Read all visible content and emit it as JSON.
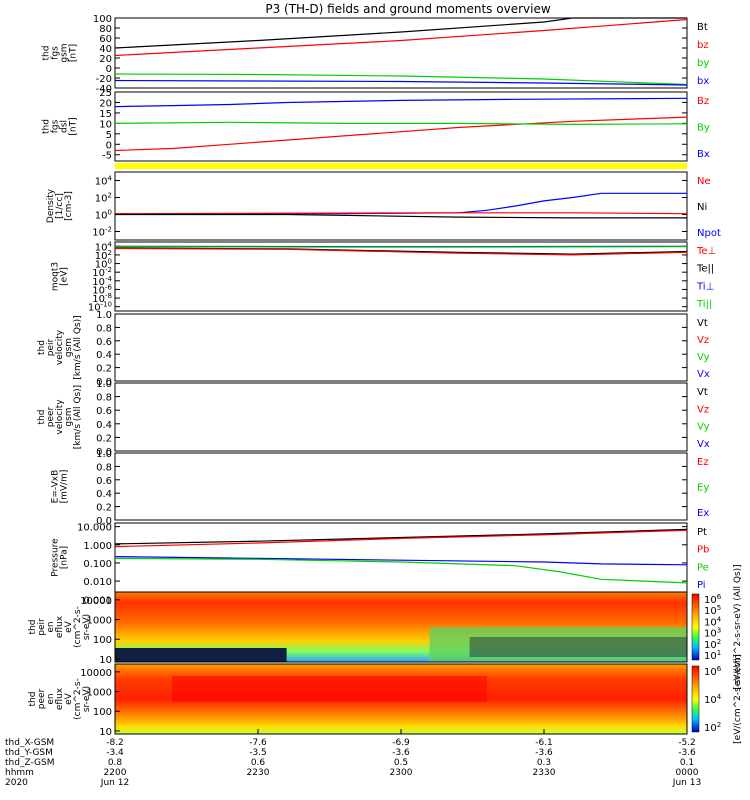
{
  "title": "P3 (TH-D) fields and ground moments overview",
  "colors": {
    "black": "#000000",
    "red": "#ff0000",
    "green": "#00d000",
    "blue": "#0000ff",
    "yellow": "#ffff00"
  },
  "chart_data": [
    {
      "id": "fgs",
      "type": "line",
      "ylabel_lines": [
        "thd",
        "fgs",
        "gsm",
        "[nT]"
      ],
      "ylim": [
        -40,
        100
      ],
      "yticks": [
        100,
        80,
        60,
        40,
        20,
        0,
        -20,
        -40
      ],
      "legend": [
        {
          "name": "Bt",
          "color": "#000000"
        },
        {
          "name": "bz",
          "color": "#ff0000"
        },
        {
          "name": "by",
          "color": "#00d000"
        },
        {
          "name": "bx",
          "color": "#0000ff"
        }
      ],
      "series": [
        {
          "name": "Bt",
          "color": "#000000",
          "x": [
            0,
            0.25,
            0.5,
            0.75,
            0.8,
            1
          ],
          "y": [
            40,
            55,
            72,
            92,
            100,
            100
          ]
        },
        {
          "name": "bz",
          "color": "#ff0000",
          "x": [
            0,
            0.25,
            0.5,
            0.75,
            1
          ],
          "y": [
            25,
            40,
            55,
            75,
            97
          ]
        },
        {
          "name": "by",
          "color": "#00d000",
          "x": [
            0,
            0.25,
            0.5,
            0.75,
            1
          ],
          "y": [
            -12,
            -13,
            -16,
            -22,
            -33
          ]
        },
        {
          "name": "bx",
          "color": "#0000ff",
          "x": [
            0,
            0.25,
            0.5,
            0.75,
            1
          ],
          "y": [
            -25,
            -26,
            -27,
            -30,
            -34
          ]
        }
      ]
    },
    {
      "id": "fgs_dsl",
      "type": "line",
      "ylabel_lines": [
        "thd",
        "fgs",
        "dsl",
        "[nT]"
      ],
      "ylim": [
        -8,
        25
      ],
      "yticks": [
        25,
        20,
        15,
        10,
        5,
        0,
        -5
      ],
      "legend": [
        {
          "name": "Bz",
          "color": "#ff0000"
        },
        {
          "name": "By",
          "color": "#00d000"
        },
        {
          "name": "Bx",
          "color": "#0000ff"
        }
      ],
      "series": [
        {
          "name": "Bz",
          "color": "#ff0000",
          "x": [
            0,
            0.1,
            0.2,
            0.4,
            0.6,
            0.8,
            1
          ],
          "y": [
            -3,
            -2,
            0,
            4,
            8,
            11,
            13
          ]
        },
        {
          "name": "By",
          "color": "#00d000",
          "x": [
            0,
            0.2,
            0.4,
            0.6,
            0.8,
            1
          ],
          "y": [
            10,
            10.5,
            10,
            10,
            9.5,
            9.8
          ]
        },
        {
          "name": "Bx",
          "color": "#0000ff",
          "x": [
            0,
            0.1,
            0.2,
            0.3,
            0.5,
            0.7,
            1
          ],
          "y": [
            18,
            18.5,
            19,
            20,
            21,
            21.5,
            22
          ]
        }
      ]
    },
    {
      "id": "density",
      "type": "line",
      "ylabel_lines": [
        "Density",
        "[1/cc]",
        "[cm-3]"
      ],
      "log": true,
      "ylim": [
        -3,
        5
      ],
      "ytick_exps": [
        4,
        2,
        0,
        -2
      ],
      "legend": [
        {
          "name": "Ne",
          "color": "#ff0000"
        },
        {
          "name": "Ni",
          "color": "#000000"
        },
        {
          "name": "Npot",
          "color": "#0000ff"
        }
      ],
      "series": [
        {
          "name": "Npot",
          "color": "#0000ff",
          "x": [
            0,
            0.2,
            0.4,
            0.6,
            0.65,
            0.7,
            0.75,
            0.8,
            0.85,
            1
          ],
          "y": [
            0.05,
            0.1,
            0.1,
            0.2,
            0.5,
            1,
            1.6,
            2,
            2.5,
            2.5
          ]
        },
        {
          "name": "Ne",
          "color": "#ff0000",
          "x": [
            0,
            0.3,
            0.6,
            0.8,
            1
          ],
          "y": [
            0.1,
            0.15,
            0.2,
            0.2,
            0.1
          ]
        },
        {
          "name": "Ni",
          "color": "#000000",
          "x": [
            0,
            0.3,
            0.6,
            0.8,
            1
          ],
          "y": [
            0,
            0,
            -0.3,
            -0.4,
            -0.4
          ]
        }
      ]
    },
    {
      "id": "moms",
      "type": "line",
      "ylabel_lines": [
        "moqt3",
        "[eV]"
      ],
      "log": true,
      "ylim": [
        -11,
        5
      ],
      "ytick_exps": [
        4,
        2,
        0,
        -2,
        -4,
        -6,
        -8,
        -10
      ],
      "legend": [
        {
          "name": "Te⊥",
          "color": "#ff0000"
        },
        {
          "name": "Te||",
          "color": "#000000"
        },
        {
          "name": "Ti⊥",
          "color": "#0000ff"
        },
        {
          "name": "Ti||",
          "color": "#00d000"
        }
      ],
      "series": [
        {
          "name": "Ti⊥",
          "color": "#0000ff",
          "x": [
            0,
            0.5,
            1
          ],
          "y": [
            4,
            3.9,
            4
          ]
        },
        {
          "name": "Ti||",
          "color": "#00d000",
          "x": [
            0,
            0.5,
            1
          ],
          "y": [
            3.9,
            3.8,
            3.9
          ]
        },
        {
          "name": "Te||",
          "color": "#000000",
          "x": [
            0,
            0.3,
            0.6,
            0.8,
            1
          ],
          "y": [
            3.6,
            3.4,
            2.6,
            2.2,
            2.8
          ]
        },
        {
          "name": "Te⊥",
          "color": "#ff0000",
          "x": [
            0,
            0.3,
            0.6,
            0.8,
            1
          ],
          "y": [
            3.5,
            3.3,
            2.4,
            2,
            2.6
          ]
        }
      ]
    },
    {
      "id": "peir_vel",
      "type": "line",
      "ylabel_lines": [
        "thd",
        "peir",
        "velocity",
        "gsm",
        "[km/s (All Qs)]"
      ],
      "ylim": [
        0,
        1
      ],
      "yticks": [
        1.0,
        0.8,
        0.6,
        0.4,
        0.2,
        0.0
      ],
      "legend": [
        {
          "name": "Vt",
          "color": "#000000"
        },
        {
          "name": "Vz",
          "color": "#ff0000"
        },
        {
          "name": "Vy",
          "color": "#00d000"
        },
        {
          "name": "Vx",
          "color": "#0000ff"
        }
      ],
      "series": []
    },
    {
      "id": "peer_vel",
      "type": "line",
      "ylabel_lines": [
        "thd",
        "peer",
        "velocity",
        "gsm",
        "[km/s (All Qs)]"
      ],
      "ylim": [
        0,
        1
      ],
      "yticks": [
        1.0,
        0.8,
        0.6,
        0.4,
        0.2,
        0.0
      ],
      "legend": [
        {
          "name": "Vt",
          "color": "#000000"
        },
        {
          "name": "Vz",
          "color": "#ff0000"
        },
        {
          "name": "Vy",
          "color": "#00d000"
        },
        {
          "name": "Vx",
          "color": "#0000ff"
        }
      ],
      "series": []
    },
    {
      "id": "efield",
      "type": "line",
      "ylabel_lines": [
        "E=-VxB",
        "[mV/m]"
      ],
      "ylim": [
        0,
        1
      ],
      "yticks": [
        1.0,
        0.8,
        0.6,
        0.4,
        0.2,
        0.0
      ],
      "legend": [
        {
          "name": "Ez",
          "color": "#ff0000"
        },
        {
          "name": "Ey",
          "color": "#00d000"
        },
        {
          "name": "Ex",
          "color": "#0000ff"
        }
      ],
      "series": []
    },
    {
      "id": "pressure",
      "type": "line",
      "ylabel_lines": [
        "Pressure",
        "[nPa]"
      ],
      "log": true,
      "ylim": [
        -2.6,
        1.2
      ],
      "ytick_labels": [
        "10.000",
        "1.000",
        "0.100",
        "0.010",
        "0.001"
      ],
      "ytick_exps": [
        1,
        0,
        -1,
        -2,
        -3
      ],
      "legend": [
        {
          "name": "Pt",
          "color": "#000000"
        },
        {
          "name": "Pb",
          "color": "#ff0000"
        },
        {
          "name": "Pe",
          "color": "#00d000"
        },
        {
          "name": "Pi",
          "color": "#0000ff"
        }
      ],
      "series": [
        {
          "name": "Pt",
          "color": "#000000",
          "x": [
            0,
            0.25,
            0.5,
            0.75,
            1
          ],
          "y": [
            0.05,
            0.2,
            0.4,
            0.6,
            0.85
          ]
        },
        {
          "name": "Pb",
          "color": "#ff0000",
          "x": [
            0,
            0.25,
            0.5,
            0.75,
            1
          ],
          "y": [
            -0.1,
            0.1,
            0.35,
            0.55,
            0.8
          ]
        },
        {
          "name": "Pi",
          "color": "#0000ff",
          "x": [
            0,
            0.25,
            0.5,
            0.75,
            0.85,
            1
          ],
          "y": [
            -0.65,
            -0.75,
            -0.85,
            -0.95,
            -1.05,
            -1.1
          ]
        },
        {
          "name": "Pe",
          "color": "#00d000",
          "x": [
            0,
            0.25,
            0.5,
            0.7,
            0.78,
            0.85,
            1
          ],
          "y": [
            -0.75,
            -0.8,
            -0.95,
            -1.15,
            -1.5,
            -1.9,
            -2.1
          ]
        }
      ]
    },
    {
      "id": "peir_eflux",
      "type": "heatmap",
      "ylabel_lines": [
        "thd",
        "peir",
        "en",
        "eflux",
        "eV",
        "(cm^2-s-",
        "sr-eV)"
      ],
      "ytick_labels": [
        "10000",
        "1000",
        "100",
        "10"
      ],
      "ylim": [
        7,
        25000
      ],
      "colorbar_label": "[eV/(cm^2-s-sr-eV) (All Qs)]",
      "colorbar_ticks": [
        "10^6",
        "10^5",
        "10^4",
        "10^3",
        "10^2",
        "10^1"
      ]
    },
    {
      "id": "peer_eflux",
      "type": "heatmap",
      "ylabel_lines": [
        "thd",
        "peer",
        "en",
        "eflux",
        "eV",
        "(cm^2-s-",
        "sr-eV)"
      ],
      "ytick_labels": [
        "10000",
        "1000",
        "100",
        "10"
      ],
      "ylim": [
        7,
        25000
      ],
      "colorbar_label": "[eV/(cm^2-s-sr-eV)]",
      "colorbar_ticks": [
        "10^6",
        "10^4",
        "10^2"
      ]
    }
  ],
  "xaxis": {
    "rows": [
      {
        "label": "thd_X-GSM",
        "values": [
          "-8.2",
          "-7.6",
          "-6.9",
          "-6.1",
          "-5.2"
        ]
      },
      {
        "label": "thd_Y-GSM",
        "values": [
          "-3.4",
          "-3.5",
          "-3.6",
          "-3.6",
          "-3.6"
        ]
      },
      {
        "label": "thd_Z-GSM",
        "values": [
          "0.8",
          "0.6",
          "0.5",
          "0.3",
          "0.1"
        ]
      },
      {
        "label": "hhmm",
        "values": [
          "2200",
          "2230",
          "2300",
          "2330",
          "0000"
        ]
      },
      {
        "label": "2020",
        "values": [
          "Jun 12",
          "",
          "",
          "",
          "Jun 13"
        ]
      }
    ]
  }
}
